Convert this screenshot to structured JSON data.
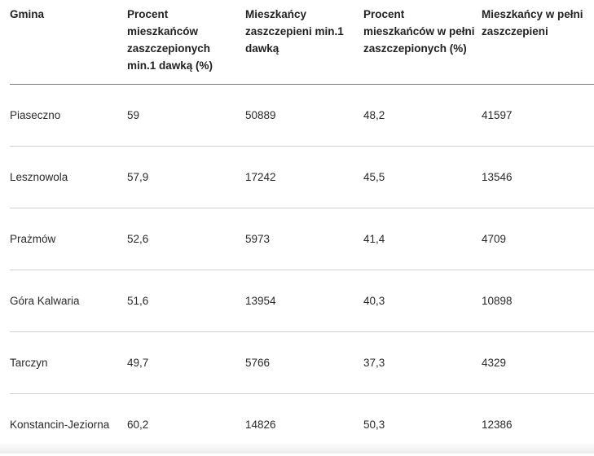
{
  "table": {
    "headers": [
      "Gmina",
      "Procent mieszkańców zaszczepionych min.1 dawką (%)",
      "Mieszkańcy zaszczepieni min.1 dawką",
      "Procent mieszkańców w pełni zaszczepionych (%)",
      "Mieszkańcy w pełni zaszczepieni"
    ],
    "rows": [
      [
        "Piaseczno",
        "59",
        "50889",
        "48,2",
        "41597"
      ],
      [
        "Lesznowola",
        "57,9",
        "17242",
        "45,5",
        "13546"
      ],
      [
        "Prażmów",
        "52,6",
        "5973",
        "41,4",
        "4709"
      ],
      [
        "Góra Kalwaria",
        "51,6",
        "13954",
        "40,3",
        "10898"
      ],
      [
        "Tarczyn",
        "49,7",
        "5766",
        "37,3",
        "4329"
      ],
      [
        "Konstancin-Jeziorna",
        "60,2",
        "14826",
        "50,3",
        "12386"
      ]
    ]
  }
}
